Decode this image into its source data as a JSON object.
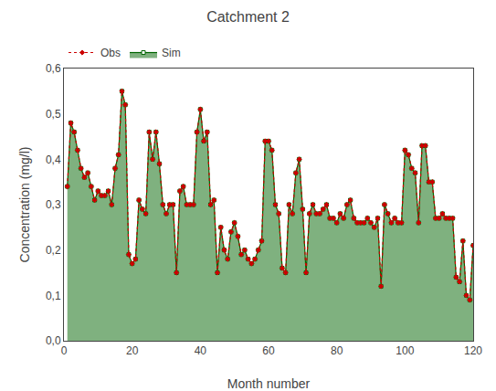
{
  "chart_data": {
    "type": "line",
    "title": "Catchment 2",
    "xlabel": "Month number",
    "ylabel": "Concentration (mg/l)",
    "x": [
      1,
      2,
      3,
      4,
      5,
      6,
      7,
      8,
      9,
      10,
      11,
      12,
      13,
      14,
      15,
      16,
      17,
      18,
      19,
      20,
      21,
      22,
      23,
      24,
      25,
      26,
      27,
      28,
      29,
      30,
      31,
      32,
      33,
      34,
      35,
      36,
      37,
      38,
      39,
      40,
      41,
      42,
      43,
      44,
      45,
      46,
      47,
      48,
      49,
      50,
      51,
      52,
      53,
      54,
      55,
      56,
      57,
      58,
      59,
      60,
      61,
      62,
      63,
      64,
      65,
      66,
      67,
      68,
      69,
      70,
      71,
      72,
      73,
      74,
      75,
      76,
      77,
      78,
      79,
      80,
      81,
      82,
      83,
      84,
      85,
      86,
      87,
      88,
      89,
      90,
      91,
      92,
      93,
      94,
      95,
      96,
      97,
      98,
      99,
      100,
      101,
      102,
      103,
      104,
      105,
      106,
      107,
      108,
      109,
      110,
      111,
      112,
      113,
      114,
      115,
      116,
      117,
      118,
      119,
      120
    ],
    "series": [
      {
        "name": "Sim",
        "type": "area",
        "color": "#006400",
        "marker": "square",
        "line_style": "solid",
        "values": [
          0.34,
          0.48,
          0.46,
          0.42,
          0.38,
          0.36,
          0.37,
          0.34,
          0.31,
          0.33,
          0.32,
          0.32,
          0.33,
          0.3,
          0.38,
          0.41,
          0.55,
          0.52,
          0.19,
          0.17,
          0.18,
          0.31,
          0.29,
          0.28,
          0.46,
          0.4,
          0.46,
          0.39,
          0.3,
          0.28,
          0.3,
          0.3,
          0.15,
          0.33,
          0.34,
          0.3,
          0.3,
          0.3,
          0.46,
          0.51,
          0.44,
          0.46,
          0.3,
          0.31,
          0.15,
          0.25,
          0.2,
          0.18,
          0.24,
          0.26,
          0.23,
          0.19,
          0.2,
          0.18,
          0.17,
          0.18,
          0.2,
          0.22,
          0.44,
          0.44,
          0.42,
          0.3,
          0.28,
          0.16,
          0.15,
          0.3,
          0.28,
          0.37,
          0.4,
          0.29,
          0.15,
          0.28,
          0.3,
          0.28,
          0.28,
          0.29,
          0.3,
          0.27,
          0.27,
          0.26,
          0.28,
          0.27,
          0.3,
          0.31,
          0.27,
          0.26,
          0.26,
          0.26,
          0.27,
          0.26,
          0.25,
          0.27,
          0.12,
          0.3,
          0.28,
          0.26,
          0.27,
          0.26,
          0.26,
          0.42,
          0.41,
          0.38,
          0.37,
          0.26,
          0.43,
          0.43,
          0.35,
          0.35,
          0.27,
          0.27,
          0.28,
          0.27,
          0.27,
          0.27,
          0.14,
          0.13,
          0.22,
          0.1,
          0.09,
          0.21
        ]
      },
      {
        "name": "Obs",
        "type": "line",
        "color": "#cc0000",
        "marker": "diamond",
        "line_style": "dotted",
        "values": [
          0.34,
          0.48,
          0.46,
          0.42,
          0.38,
          0.36,
          0.37,
          0.34,
          0.31,
          0.33,
          0.32,
          0.32,
          0.33,
          0.3,
          0.38,
          0.41,
          0.55,
          0.52,
          0.19,
          0.17,
          0.18,
          0.31,
          0.29,
          0.28,
          0.46,
          0.4,
          0.46,
          0.39,
          0.3,
          0.28,
          0.3,
          0.3,
          0.15,
          0.33,
          0.34,
          0.3,
          0.3,
          0.3,
          0.46,
          0.51,
          0.44,
          0.46,
          0.3,
          0.31,
          0.15,
          0.25,
          0.2,
          0.18,
          0.24,
          0.26,
          0.23,
          0.19,
          0.2,
          0.18,
          0.17,
          0.18,
          0.2,
          0.22,
          0.44,
          0.44,
          0.42,
          0.3,
          0.28,
          0.16,
          0.15,
          0.3,
          0.28,
          0.37,
          0.4,
          0.29,
          0.15,
          0.28,
          0.3,
          0.28,
          0.28,
          0.29,
          0.3,
          0.27,
          0.27,
          0.26,
          0.28,
          0.27,
          0.3,
          0.31,
          0.27,
          0.26,
          0.26,
          0.26,
          0.27,
          0.26,
          0.25,
          0.27,
          0.12,
          0.3,
          0.28,
          0.26,
          0.27,
          0.26,
          0.26,
          0.42,
          0.41,
          0.38,
          0.37,
          0.26,
          0.43,
          0.43,
          0.35,
          0.35,
          0.27,
          0.27,
          0.28,
          0.27,
          0.27,
          0.27,
          0.14,
          0.13,
          0.22,
          0.1,
          0.09,
          0.21
        ]
      }
    ],
    "xlim": [
      0,
      120
    ],
    "xticks": [
      0,
      20,
      40,
      60,
      80,
      100,
      120
    ],
    "ylim": [
      0.0,
      0.6
    ],
    "yticks": [
      {
        "value": 0.0,
        "label": "0,0"
      },
      {
        "value": 0.1,
        "label": "0,1"
      },
      {
        "value": 0.2,
        "label": "0,2"
      },
      {
        "value": 0.3,
        "label": "0,3"
      },
      {
        "value": 0.4,
        "label": "0,4"
      },
      {
        "value": 0.5,
        "label": "0,5"
      },
      {
        "value": 0.6,
        "label": "0,6"
      }
    ],
    "grid": false,
    "legend": "upper left"
  }
}
